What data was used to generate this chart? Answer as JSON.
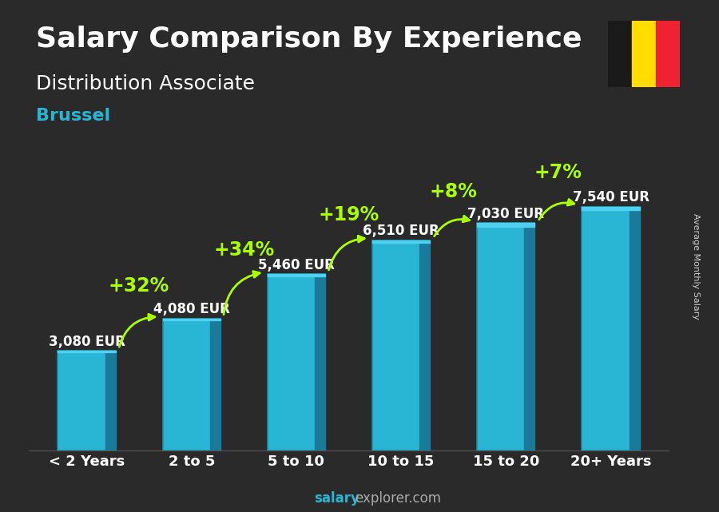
{
  "title": "Salary Comparison By Experience",
  "subtitle": "Distribution Associate",
  "city": "Brussel",
  "ylabel": "Average Monthly Salary",
  "watermark_salary": "salary",
  "watermark_rest": "explorer.com",
  "categories": [
    "< 2 Years",
    "2 to 5",
    "5 to 10",
    "10 to 15",
    "15 to 20",
    "20+ Years"
  ],
  "values": [
    3080,
    4080,
    5460,
    6510,
    7030,
    7540
  ],
  "value_labels": [
    "3,080 EUR",
    "4,080 EUR",
    "5,460 EUR",
    "6,510 EUR",
    "7,030 EUR",
    "7,540 EUR"
  ],
  "pct_labels": [
    "+32%",
    "+34%",
    "+19%",
    "+8%",
    "+7%"
  ],
  "bar_color": "#29b6d4",
  "bar_edge_color": "#1a8fa8",
  "bar_dark_color": "#1a7a9a",
  "bar_light_color": "#50d0f0",
  "pct_color": "#aaff00",
  "arrow_color": "#aaff00",
  "title_color": "#ffffff",
  "subtitle_color": "#ffffff",
  "city_color": "#29b6d4",
  "value_label_color": "#ffffff",
  "bg_color": "#2a2a2a",
  "flag_colors": [
    "#1a1a1a",
    "#FFDD00",
    "#EE2233"
  ],
  "watermark_bold_color": "#ffffff",
  "watermark_color": "#aaaaaa",
  "ylabel_color": "#cccccc",
  "ylim": [
    0,
    9500
  ],
  "title_fontsize": 26,
  "subtitle_fontsize": 18,
  "city_fontsize": 16,
  "bar_value_fontsize": 12,
  "pct_fontsize": 17,
  "tick_fontsize": 13,
  "watermark_fontsize": 12,
  "ylabel_fontsize": 8
}
